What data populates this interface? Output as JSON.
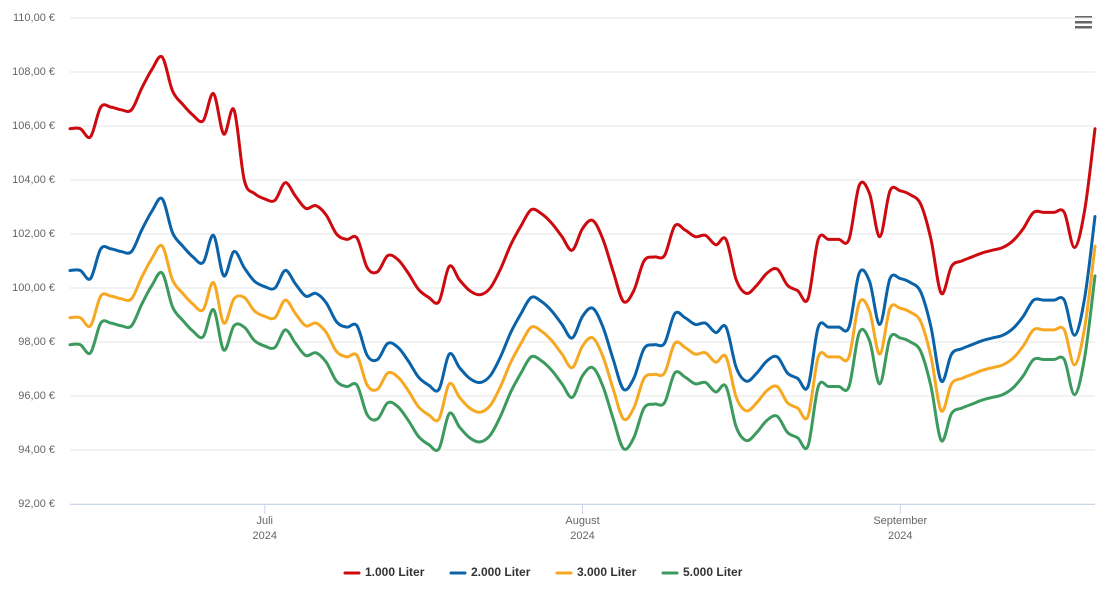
{
  "chart_data": {
    "type": "line",
    "categories": [
      null,
      null,
      null,
      null,
      null,
      null,
      null,
      null,
      null,
      null,
      null,
      null,
      null,
      null,
      null,
      null,
      null,
      null,
      null,
      "Juli\n2024",
      null,
      null,
      null,
      null,
      null,
      null,
      null,
      null,
      null,
      null,
      null,
      null,
      null,
      null,
      null,
      null,
      null,
      null,
      null,
      null,
      null,
      null,
      null,
      null,
      null,
      null,
      null,
      null,
      null,
      null,
      "August\n2024",
      null,
      null,
      null,
      null,
      null,
      null,
      null,
      null,
      null,
      null,
      null,
      null,
      null,
      null,
      null,
      null,
      null,
      null,
      null,
      null,
      null,
      null,
      null,
      null,
      null,
      null,
      null,
      null,
      null,
      null,
      "September\n2024",
      null,
      null,
      null,
      null,
      null,
      null,
      null,
      null,
      null,
      null,
      null,
      null,
      null,
      null,
      null,
      null,
      null,
      null,
      null
    ],
    "series": [
      {
        "name": "1.000 Liter",
        "color": "#cc0a0f",
        "values": [
          105.9,
          105.9,
          105.6,
          106.7,
          106.7,
          106.6,
          106.6,
          107.4,
          108.1,
          108.55,
          107.3,
          106.8,
          106.4,
          106.2,
          107.2,
          105.7,
          106.6,
          104.0,
          103.5,
          103.3,
          103.25,
          103.9,
          103.4,
          102.95,
          103.05,
          102.7,
          102.0,
          101.8,
          101.85,
          100.75,
          100.6,
          101.2,
          101.05,
          100.55,
          99.95,
          99.65,
          99.5,
          100.8,
          100.3,
          99.9,
          99.75,
          100.0,
          100.7,
          101.6,
          102.3,
          102.9,
          102.75,
          102.4,
          101.9,
          101.4,
          102.2,
          102.5,
          101.8,
          100.6,
          99.5,
          99.9,
          101.0,
          101.15,
          101.2,
          102.3,
          102.15,
          101.9,
          101.95,
          101.6,
          101.8,
          100.3,
          99.8,
          100.1,
          100.55,
          100.7,
          100.1,
          99.9,
          99.6,
          101.8,
          101.8,
          101.8,
          101.8,
          103.8,
          103.5,
          101.9,
          103.6,
          103.6,
          103.45,
          103.1,
          101.8,
          99.8,
          100.8,
          101.0,
          101.15,
          101.3,
          101.4,
          101.5,
          101.75,
          102.2,
          102.8,
          102.8,
          102.8,
          102.8,
          101.5,
          102.9,
          105.9
        ]
      },
      {
        "name": "2.000 Liter",
        "color": "#0a62a8",
        "values": [
          100.65,
          100.65,
          100.35,
          101.45,
          101.45,
          101.35,
          101.35,
          102.15,
          102.85,
          103.3,
          102.05,
          101.55,
          101.15,
          100.95,
          101.95,
          100.45,
          101.35,
          100.75,
          100.25,
          100.05,
          100.0,
          100.65,
          100.15,
          99.7,
          99.8,
          99.45,
          98.75,
          98.55,
          98.6,
          97.5,
          97.35,
          97.95,
          97.8,
          97.3,
          96.7,
          96.4,
          96.25,
          97.55,
          97.05,
          96.65,
          96.5,
          96.75,
          97.45,
          98.35,
          99.05,
          99.65,
          99.5,
          99.15,
          98.65,
          98.15,
          98.95,
          99.25,
          98.55,
          97.35,
          96.25,
          96.65,
          97.75,
          97.9,
          97.95,
          99.05,
          98.9,
          98.65,
          98.7,
          98.35,
          98.55,
          97.05,
          96.55,
          96.85,
          97.3,
          97.45,
          96.85,
          96.65,
          96.35,
          98.55,
          98.55,
          98.55,
          98.55,
          100.55,
          100.25,
          98.65,
          100.35,
          100.35,
          100.2,
          99.85,
          98.55,
          96.55,
          97.55,
          97.75,
          97.9,
          98.05,
          98.15,
          98.25,
          98.5,
          98.95,
          99.55,
          99.55,
          99.55,
          99.55,
          98.25,
          99.65,
          102.65
        ]
      },
      {
        "name": "3.000 Liter",
        "color": "#f7a823",
        "values": [
          98.9,
          98.9,
          98.6,
          99.7,
          99.7,
          99.6,
          99.6,
          100.4,
          101.1,
          101.55,
          100.3,
          99.8,
          99.4,
          99.2,
          100.2,
          98.7,
          99.6,
          99.65,
          99.15,
          98.95,
          98.9,
          99.55,
          99.05,
          98.6,
          98.7,
          98.35,
          97.65,
          97.45,
          97.5,
          96.4,
          96.25,
          96.85,
          96.7,
          96.2,
          95.6,
          95.3,
          95.15,
          96.45,
          95.95,
          95.55,
          95.4,
          95.65,
          96.35,
          97.25,
          97.95,
          98.55,
          98.4,
          98.05,
          97.55,
          97.05,
          97.85,
          98.15,
          97.45,
          96.25,
          95.15,
          95.55,
          96.65,
          96.8,
          96.85,
          97.95,
          97.8,
          97.55,
          97.6,
          97.25,
          97.45,
          95.95,
          95.45,
          95.75,
          96.2,
          96.35,
          95.75,
          95.55,
          95.25,
          97.45,
          97.45,
          97.45,
          97.45,
          99.45,
          99.15,
          97.55,
          99.25,
          99.25,
          99.1,
          98.75,
          97.45,
          95.45,
          96.45,
          96.65,
          96.8,
          96.95,
          97.05,
          97.15,
          97.4,
          97.85,
          98.45,
          98.45,
          98.45,
          98.45,
          97.15,
          98.55,
          101.55
        ]
      },
      {
        "name": "5.000 Liter",
        "color": "#3d9a5e",
        "values": [
          97.9,
          97.9,
          97.6,
          98.7,
          98.7,
          98.6,
          98.6,
          99.4,
          100.1,
          100.55,
          99.3,
          98.8,
          98.4,
          98.2,
          99.2,
          97.7,
          98.6,
          98.55,
          98.05,
          97.85,
          97.8,
          98.45,
          97.95,
          97.5,
          97.6,
          97.25,
          96.55,
          96.35,
          96.4,
          95.3,
          95.15,
          95.75,
          95.6,
          95.1,
          94.5,
          94.2,
          94.05,
          95.35,
          94.85,
          94.45,
          94.3,
          94.55,
          95.25,
          96.15,
          96.85,
          97.45,
          97.3,
          96.95,
          96.45,
          95.95,
          96.75,
          97.05,
          96.35,
          95.15,
          94.05,
          94.45,
          95.55,
          95.7,
          95.75,
          96.85,
          96.7,
          96.45,
          96.5,
          96.15,
          96.35,
          94.85,
          94.35,
          94.65,
          95.1,
          95.25,
          94.65,
          94.45,
          94.15,
          96.35,
          96.35,
          96.35,
          96.35,
          98.35,
          98.05,
          96.45,
          98.15,
          98.15,
          98.0,
          97.65,
          96.35,
          94.35,
          95.35,
          95.55,
          95.7,
          95.85,
          95.95,
          96.05,
          96.3,
          96.75,
          97.35,
          97.35,
          97.35,
          97.35,
          96.05,
          97.45,
          100.45
        ]
      }
    ],
    "ylim": [
      92,
      110
    ],
    "yticks": [
      {
        "value": 92,
        "label": "92,00 €"
      },
      {
        "value": 94,
        "label": "94,00 €"
      },
      {
        "value": 96,
        "label": "96,00 €"
      },
      {
        "value": 98,
        "label": "98,00 €"
      },
      {
        "value": 100,
        "label": "100,00 €"
      },
      {
        "value": 102,
        "label": "102,00 €"
      },
      {
        "value": 104,
        "label": "104,00 €"
      },
      {
        "value": 106,
        "label": "106,00 €"
      },
      {
        "value": 108,
        "label": "108,00 €"
      },
      {
        "value": 110,
        "label": "110,00 €"
      }
    ],
    "grid": true,
    "legend": "bottom"
  }
}
